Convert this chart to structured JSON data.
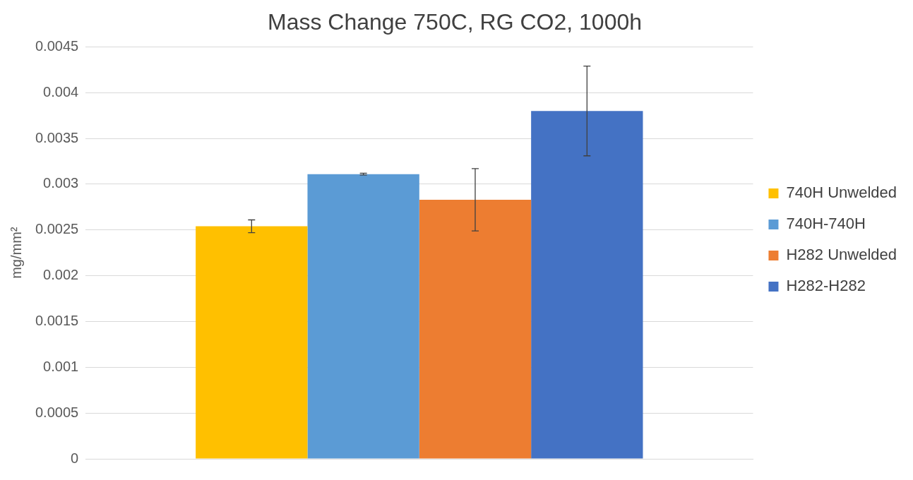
{
  "chart_data": {
    "type": "bar",
    "title": "Mass Change 750C, RG CO2, 1000h",
    "ylabel": "mg/mm²",
    "categories": [
      null
    ],
    "series": [
      {
        "name": "740H Unwelded",
        "color": "#ffc000",
        "values": [
          0.00254
        ],
        "errors": [
          7e-05
        ]
      },
      {
        "name": "740H-740H",
        "color": "#5b9bd5",
        "values": [
          0.00311
        ],
        "errors": [
          1e-05
        ]
      },
      {
        "name": "H282 Unwelded",
        "color": "#ed7d31",
        "values": [
          0.00283
        ],
        "errors": [
          0.00034
        ]
      },
      {
        "name": "H282-H282",
        "color": "#4472c4",
        "values": [
          0.0038
        ],
        "errors": [
          0.00049
        ]
      }
    ],
    "ylim": [
      0,
      0.0045
    ],
    "yticks": [
      0,
      0.0005,
      0.001,
      0.0015,
      0.002,
      0.0025,
      0.003,
      0.0035,
      0.004,
      0.0045
    ],
    "grid": "y",
    "legend": "right"
  }
}
